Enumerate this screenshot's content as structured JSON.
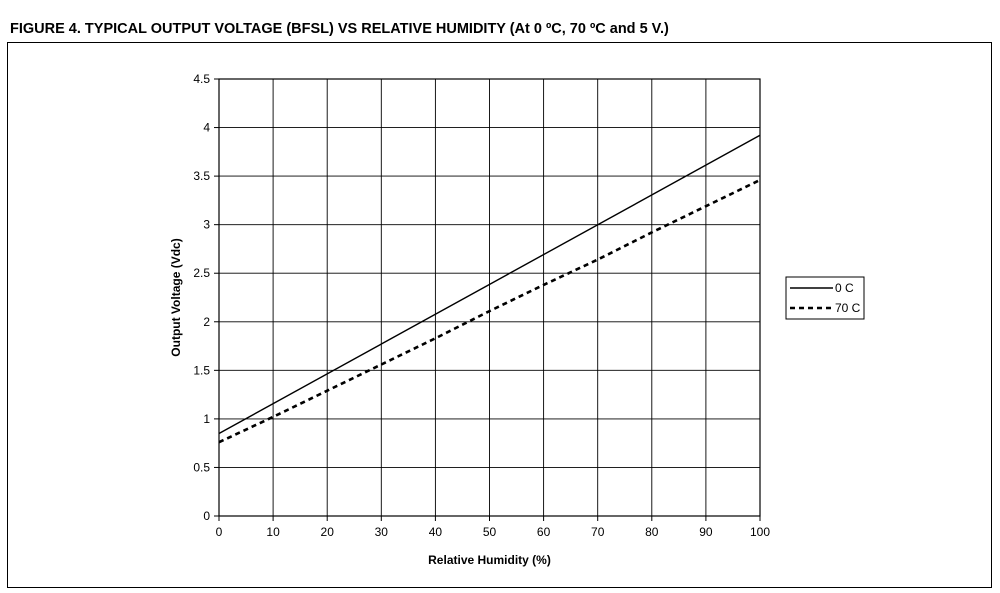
{
  "figure": {
    "title": "FIGURE 4. TYPICAL OUTPUT VOLTAGE (BFSL) VS RELATIVE HUMIDITY (At 0 ºC, 70 ºC and 5 V.)"
  },
  "chart_data": {
    "type": "line",
    "title": "",
    "xlabel": "Relative Humidity (%)",
    "ylabel": "Output Voltage (Vdc)",
    "xlim": [
      0,
      100
    ],
    "ylim": [
      0,
      4.5
    ],
    "xticks": [
      "0",
      "10",
      "20",
      "30",
      "40",
      "50",
      "60",
      "70",
      "80",
      "90",
      "100"
    ],
    "yticks": [
      "0",
      "0.5",
      "1",
      "1.5",
      "2",
      "2.5",
      "3",
      "3.5",
      "4",
      "4.5"
    ],
    "grid": true,
    "legend_position": "right",
    "series": [
      {
        "name": "0 C",
        "style": "solid",
        "color": "#000000",
        "x": [
          0,
          100
        ],
        "y": [
          0.85,
          3.92
        ]
      },
      {
        "name": "70 C",
        "style": "dashed",
        "color": "#000000",
        "x": [
          0,
          10,
          20,
          30,
          40,
          50,
          60,
          70,
          80,
          90,
          100
        ],
        "y": [
          0.76,
          1.02,
          1.29,
          1.56,
          1.83,
          2.11,
          2.38,
          2.64,
          2.92,
          3.19,
          3.46
        ]
      }
    ]
  }
}
